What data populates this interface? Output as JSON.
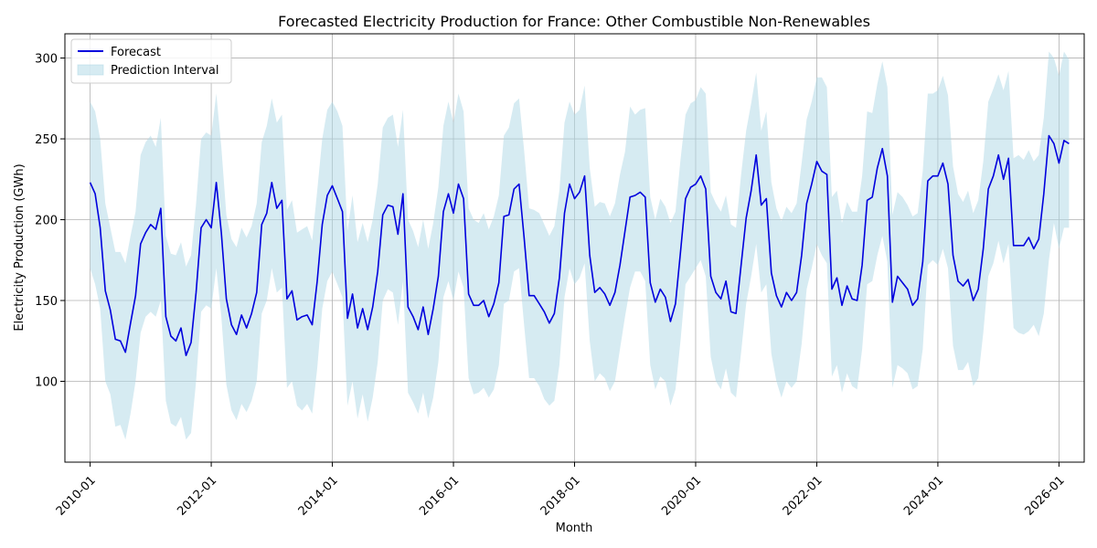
{
  "chart_data": {
    "type": "line",
    "title": "Forecasted Electricity Production for France: Other Combustible Non-Renewables",
    "xlabel": "Month",
    "ylabel": "Electricity Production (GWh)",
    "x_start": "2010-01",
    "x_ticks": [
      "2010-01",
      "2012-01",
      "2014-01",
      "2016-01",
      "2018-01",
      "2020-01",
      "2022-01",
      "2024-01",
      "2026-01"
    ],
    "y_ticks": [
      100,
      150,
      200,
      250,
      300
    ],
    "xlim": [
      "2009-08",
      "2026-06"
    ],
    "ylim": [
      50,
      315
    ],
    "grid": true,
    "legend_position": "top-left",
    "colors": {
      "forecast": "#0000dd",
      "interval": "#add8e6"
    },
    "series": [
      {
        "name": "Forecast",
        "values": [
          223,
          216,
          195,
          156,
          144,
          126,
          125,
          118,
          136,
          153,
          185,
          192,
          197,
          194,
          207,
          140,
          128,
          125,
          133,
          116,
          124,
          155,
          195,
          200,
          195,
          223,
          192,
          151,
          135,
          129,
          141,
          133,
          142,
          155,
          197,
          204,
          223,
          207,
          212,
          151,
          156,
          138,
          140,
          141,
          135,
          162,
          197,
          215,
          221,
          213,
          205,
          139,
          154,
          133,
          145,
          132,
          146,
          168,
          203,
          209,
          208,
          191,
          216,
          146,
          140,
          132,
          146,
          129,
          145,
          165,
          205,
          216,
          204,
          222,
          213,
          154,
          147,
          147,
          150,
          140,
          148,
          161,
          202,
          203,
          219,
          222,
          189,
          153,
          153,
          148,
          143,
          136,
          142,
          164,
          204,
          222,
          213,
          217,
          227,
          178,
          155,
          158,
          154,
          147,
          155,
          172,
          193,
          214,
          215,
          217,
          214,
          161,
          149,
          157,
          152,
          137,
          148,
          180,
          213,
          220,
          222,
          227,
          219,
          165,
          155,
          151,
          162,
          143,
          142,
          172,
          201,
          218,
          240,
          209,
          213,
          167,
          153,
          146,
          155,
          150,
          155,
          178,
          210,
          222,
          236,
          230,
          228,
          157,
          164,
          147,
          159,
          151,
          150,
          172,
          212,
          214,
          232,
          244,
          227,
          149,
          165,
          161,
          157,
          147,
          151,
          174,
          224,
          227,
          227,
          235,
          222,
          178,
          162,
          159,
          163,
          150,
          157,
          182,
          219,
          227,
          240,
          225,
          238,
          184,
          184,
          184,
          189,
          182,
          188,
          216,
          252,
          247,
          235,
          249,
          247
        ],
        "lower": [
          170,
          160,
          145,
          100,
          92,
          72,
          73,
          64,
          80,
          100,
          130,
          140,
          143,
          140,
          150,
          88,
          74,
          72,
          78,
          64,
          68,
          100,
          143,
          147,
          145,
          170,
          140,
          98,
          82,
          76,
          86,
          81,
          88,
          100,
          142,
          150,
          170,
          155,
          158,
          96,
          100,
          85,
          82,
          86,
          80,
          108,
          145,
          162,
          168,
          160,
          152,
          85,
          100,
          77,
          92,
          75,
          90,
          112,
          150,
          157,
          155,
          135,
          162,
          93,
          87,
          80,
          93,
          77,
          90,
          112,
          152,
          162,
          150,
          168,
          158,
          102,
          92,
          93,
          96,
          90,
          95,
          110,
          148,
          150,
          168,
          170,
          135,
          102,
          102,
          97,
          89,
          85,
          88,
          110,
          152,
          170,
          160,
          164,
          173,
          125,
          100,
          105,
          102,
          94,
          100,
          120,
          140,
          158,
          168,
          168,
          162,
          110,
          95,
          103,
          100,
          85,
          95,
          125,
          160,
          165,
          170,
          175,
          165,
          115,
          100,
          95,
          108,
          93,
          90,
          118,
          148,
          165,
          185,
          155,
          160,
          117,
          100,
          90,
          100,
          96,
          100,
          123,
          157,
          170,
          185,
          178,
          173,
          103,
          110,
          93,
          105,
          97,
          95,
          120,
          160,
          162,
          178,
          190,
          174,
          96,
          110,
          108,
          105,
          95,
          97,
          120,
          172,
          175,
          172,
          182,
          170,
          122,
          107,
          107,
          112,
          97,
          102,
          130,
          165,
          173,
          187,
          173,
          185,
          133,
          130,
          129,
          131,
          135,
          128,
          142,
          175,
          198,
          182,
          195,
          195
        ],
        "upper": [
          273,
          267,
          250,
          210,
          195,
          180,
          180,
          173,
          190,
          205,
          240,
          248,
          252,
          245,
          263,
          190,
          179,
          178,
          186,
          171,
          178,
          210,
          250,
          254,
          252,
          278,
          245,
          203,
          188,
          183,
          195,
          189,
          196,
          210,
          248,
          258,
          275,
          260,
          265,
          206,
          212,
          192,
          194,
          196,
          187,
          218,
          250,
          268,
          273,
          267,
          258,
          193,
          215,
          186,
          198,
          186,
          200,
          222,
          257,
          263,
          265,
          245,
          268,
          200,
          193,
          183,
          200,
          182,
          198,
          220,
          258,
          273,
          260,
          278,
          267,
          207,
          200,
          198,
          204,
          194,
          202,
          215,
          252,
          257,
          272,
          275,
          243,
          207,
          206,
          204,
          197,
          190,
          196,
          218,
          260,
          273,
          265,
          268,
          283,
          232,
          208,
          211,
          210,
          202,
          210,
          228,
          242,
          270,
          265,
          268,
          269,
          214,
          200,
          213,
          208,
          198,
          205,
          237,
          265,
          272,
          274,
          282,
          278,
          217,
          210,
          205,
          215,
          197,
          195,
          228,
          255,
          272,
          291,
          255,
          267,
          223,
          207,
          199,
          208,
          204,
          210,
          235,
          262,
          273,
          288,
          288,
          282,
          214,
          218,
          198,
          211,
          205,
          205,
          227,
          267,
          266,
          284,
          298,
          282,
          203,
          217,
          214,
          209,
          202,
          204,
          230,
          278,
          278,
          280,
          289,
          277,
          233,
          216,
          211,
          218,
          204,
          212,
          236,
          273,
          281,
          290,
          280,
          292,
          238,
          240,
          237,
          243,
          236,
          240,
          263,
          304,
          300,
          289,
          304,
          299
        ]
      }
    ]
  }
}
